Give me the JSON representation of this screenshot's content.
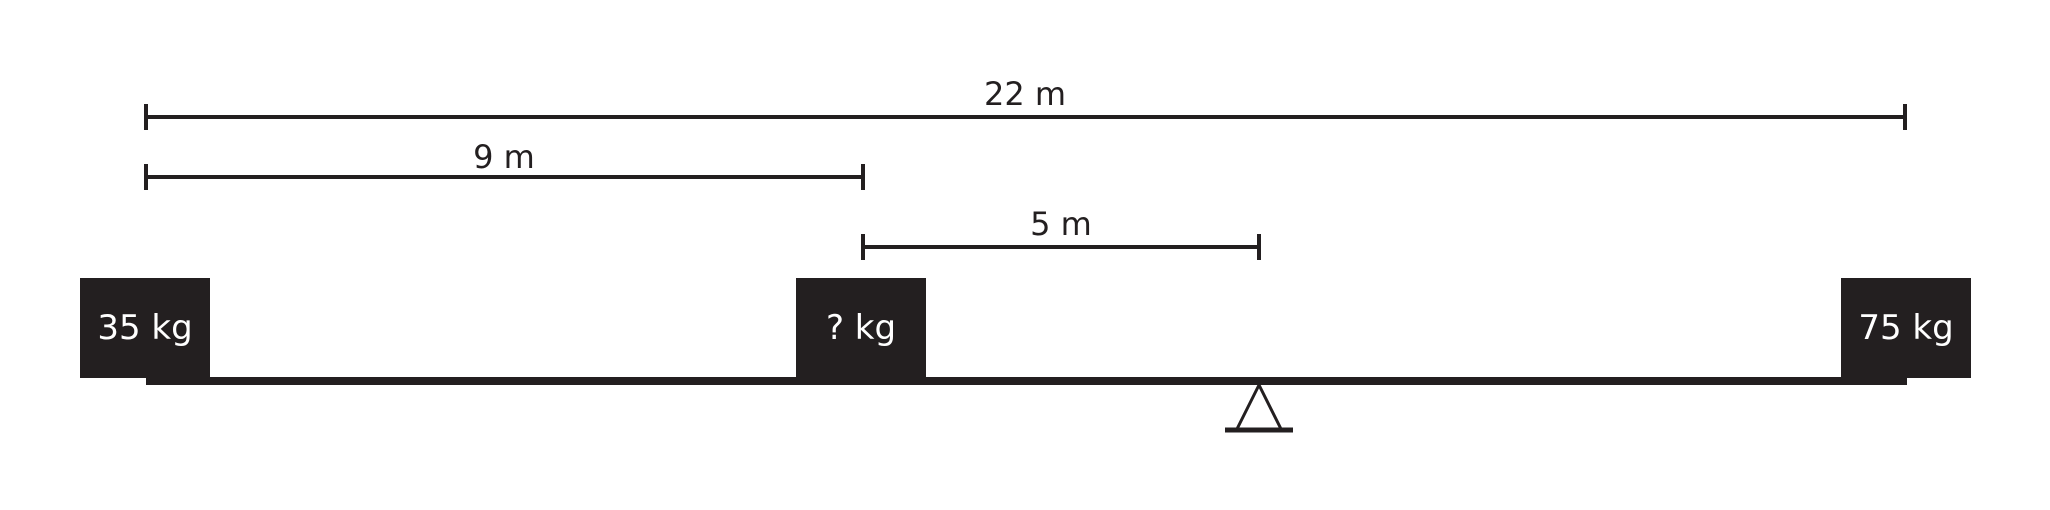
{
  "dimensions": {
    "total": "22 m",
    "left_to_unknown": "9 m",
    "unknown_to_fulcrum": "5 m"
  },
  "weights": {
    "left": "35 kg",
    "middle": "? kg",
    "right": "75 kg"
  }
}
